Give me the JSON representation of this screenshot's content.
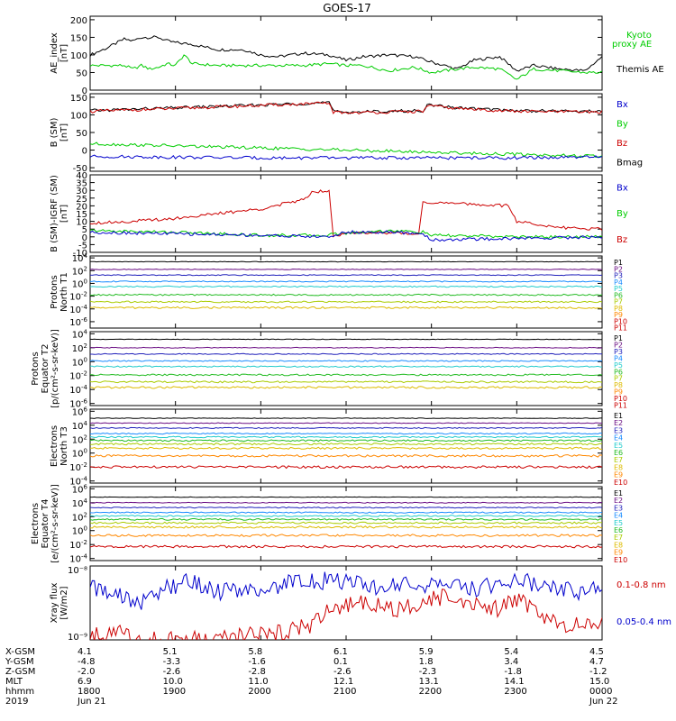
{
  "title": "GOES-17",
  "chart_data": [
    {
      "type": "line",
      "panel": "ae",
      "ylabel": [
        "AE_index",
        "[nT]"
      ],
      "yticks": [
        "200",
        "150",
        "100",
        "50",
        "0"
      ],
      "ylim": [
        0,
        210
      ],
      "legend": [
        {
          "label": "Kyoto",
          "color": "#00cc00"
        },
        {
          "label": "proxy AE",
          "color": "#00cc00"
        },
        {
          "label": "Themis AE",
          "color": "#000000"
        }
      ],
      "series": [
        {
          "name": "Themis AE",
          "color": "#000000",
          "x": [
            0,
            0.2,
            0.4,
            0.5,
            0.6,
            0.7,
            0.8,
            0.9,
            1.0,
            1.2,
            1.5,
            1.8,
            2.0,
            2.2,
            2.5,
            2.8,
            3.0,
            3.2,
            3.5,
            3.8,
            4.0,
            4.3,
            4.5,
            4.8,
            5.0,
            5.2,
            5.5,
            5.8,
            6.0
          ],
          "values": [
            100,
            120,
            145,
            140,
            150,
            150,
            150,
            140,
            135,
            130,
            115,
            115,
            100,
            95,
            105,
            100,
            85,
            95,
            100,
            95,
            80,
            60,
            85,
            95,
            55,
            70,
            60,
            55,
            95
          ]
        },
        {
          "name": "Kyoto proxy AE",
          "color": "#00cc00",
          "x": [
            0,
            0.4,
            0.5,
            0.6,
            0.7,
            0.8,
            0.9,
            1.0,
            1.1,
            1.2,
            1.5,
            1.8,
            2.0,
            2.5,
            2.8,
            3.0,
            3.2,
            3.5,
            3.8,
            4.0,
            4.3,
            4.5,
            4.8,
            5.0,
            5.2,
            5.5,
            5.8,
            6.0
          ],
          "values": [
            70,
            70,
            60,
            70,
            60,
            65,
            75,
            70,
            100,
            75,
            70,
            70,
            70,
            70,
            75,
            70,
            70,
            55,
            65,
            50,
            60,
            65,
            60,
            30,
            60,
            55,
            50,
            50
          ]
        }
      ]
    },
    {
      "type": "line",
      "panel": "bsm",
      "ylabel": [
        "B (SM)",
        "[nT]"
      ],
      "yticks": [
        "150",
        "100",
        "50",
        "0",
        "-50"
      ],
      "ylim": [
        -60,
        160
      ],
      "legend": [
        {
          "label": "Bx",
          "color": "#0000cc"
        },
        {
          "label": "By",
          "color": "#00cc00"
        },
        {
          "label": "Bz",
          "color": "#cc0000"
        },
        {
          "label": "Bmag",
          "color": "#000000"
        }
      ],
      "series": [
        {
          "name": "Bmag",
          "color": "#000000",
          "x": [
            0,
            1.0,
            2.0,
            2.8,
            2.85,
            3.0,
            3.5,
            3.9,
            3.95,
            4.3,
            5.0,
            6.0
          ],
          "values": [
            112,
            120,
            128,
            135,
            110,
            108,
            110,
            112,
            128,
            120,
            112,
            110
          ]
        },
        {
          "name": "Bz",
          "color": "#cc0000",
          "x": [
            0,
            1.0,
            2.0,
            2.8,
            2.85,
            3.0,
            3.5,
            3.9,
            3.95,
            4.3,
            5.0,
            6.0
          ],
          "values": [
            110,
            118,
            127,
            133,
            108,
            106,
            108,
            110,
            126,
            118,
            110,
            108
          ]
        },
        {
          "name": "By",
          "color": "#00cc00",
          "x": [
            0,
            1.0,
            2.0,
            3.0,
            4.0,
            5.0,
            6.0
          ],
          "values": [
            18,
            12,
            6,
            0,
            -6,
            -12,
            -18
          ]
        },
        {
          "name": "Bx",
          "color": "#0000cc",
          "x": [
            0,
            1.0,
            2.0,
            3.0,
            4.0,
            5.0,
            6.0
          ],
          "values": [
            -18,
            -20,
            -22,
            -22,
            -22,
            -22,
            -20
          ]
        }
      ]
    },
    {
      "type": "line",
      "panel": "bdiff",
      "ylabel": [
        "B (SM)-IGRF (SM)",
        "[nT]"
      ],
      "yticks": [
        "40",
        "35",
        "30",
        "25",
        "20",
        "15",
        "10",
        "5",
        "0",
        "-5",
        "-10"
      ],
      "ylim": [
        -10,
        40
      ],
      "legend": [
        {
          "label": "Bx",
          "color": "#0000cc"
        },
        {
          "label": "By",
          "color": "#00cc00"
        },
        {
          "label": "Bz",
          "color": "#cc0000"
        }
      ],
      "series": [
        {
          "name": "Bz",
          "color": "#cc0000",
          "x": [
            0,
            0.5,
            1.0,
            1.5,
            2.0,
            2.5,
            2.6,
            2.8,
            2.85,
            3.0,
            3.4,
            3.7,
            3.85,
            3.9,
            4.0,
            4.5,
            4.9,
            5.0,
            5.5,
            6.0
          ],
          "values": [
            9,
            10,
            12,
            15,
            18,
            24,
            29,
            30,
            1,
            2,
            3,
            2,
            2,
            23,
            22,
            21,
            20,
            10,
            6,
            5
          ]
        },
        {
          "name": "By",
          "color": "#00cc00",
          "x": [
            0,
            1.0,
            2.0,
            2.8,
            2.85,
            3.5,
            3.9,
            4.0,
            5.0,
            6.0
          ],
          "values": [
            4,
            3,
            1,
            1,
            2,
            4,
            3,
            1,
            0,
            0
          ]
        },
        {
          "name": "Bx",
          "color": "#0000cc",
          "x": [
            0,
            1.0,
            2.0,
            2.8,
            3.0,
            3.5,
            3.9,
            4.0,
            5.0,
            6.0
          ],
          "values": [
            3,
            2,
            1,
            0,
            3,
            3,
            2,
            -2,
            -1,
            0
          ]
        }
      ]
    },
    {
      "type": "line",
      "panel": "protons-north",
      "ylabel": [
        "Protons",
        "North T1"
      ],
      "ylog": true,
      "yticks": [
        4,
        2,
        0,
        -2,
        -4,
        -6
      ],
      "ylim_exp": [
        -7,
        4.3
      ],
      "legend": [
        "P1",
        "P2",
        "P3",
        "P4",
        "P5",
        "P6",
        "P7",
        "P8",
        "P9",
        "P10",
        "P11"
      ],
      "series": [
        {
          "name": "P1",
          "color": "#000000",
          "log_value": 3.4
        },
        {
          "name": "P2",
          "color": "#6a0d83",
          "log_value": 2.2
        },
        {
          "name": "P3",
          "color": "#2222bb",
          "log_value": 1.3
        },
        {
          "name": "P4",
          "color": "#1a8cff",
          "log_value": 0.3
        },
        {
          "name": "P5",
          "color": "#22cccc",
          "log_value": -0.5
        },
        {
          "name": "P6",
          "color": "#22bb22",
          "log_value": -1.8
        },
        {
          "name": "P7",
          "color": "#aacc00",
          "log_value": -2.9
        },
        {
          "name": "P8",
          "color": "#ddbb00",
          "log_value": -3.8
        }
      ]
    },
    {
      "type": "line",
      "panel": "protons-equator",
      "ylabel": [
        "Protons",
        "Equator T2",
        "[p/(cm²-s-sr-keV)]"
      ],
      "ylog": true,
      "yticks": [
        4,
        2,
        0,
        -2,
        -4,
        -6
      ],
      "ylim_exp": [
        -6.3,
        4.3
      ],
      "legend": [
        "P1",
        "P2",
        "P3",
        "P4",
        "P5",
        "P6",
        "P7",
        "P8",
        "P9",
        "P10",
        "P11"
      ],
      "series": [
        {
          "name": "P1",
          "color": "#000000",
          "log_value": 3.2
        },
        {
          "name": "P2",
          "color": "#6a0d83",
          "log_value": 2.0
        },
        {
          "name": "P3",
          "color": "#2222bb",
          "log_value": 1.1
        },
        {
          "name": "P4",
          "color": "#1a8cff",
          "log_value": 0.1
        },
        {
          "name": "P5",
          "color": "#22cccc",
          "log_value": -0.7
        },
        {
          "name": "P6",
          "color": "#22bb22",
          "log_value": -1.9
        },
        {
          "name": "P7",
          "color": "#aacc00",
          "log_value": -2.9
        },
        {
          "name": "P8",
          "color": "#ddbb00",
          "log_value": -3.7
        }
      ]
    },
    {
      "type": "line",
      "panel": "electrons-north",
      "ylabel": [
        "Electrons",
        "North T3"
      ],
      "ylog": true,
      "yticks": [
        6,
        4,
        2,
        0,
        -2,
        -4
      ],
      "ylim_exp": [
        -4.3,
        6.3
      ],
      "legend": [
        "E1",
        "E2",
        "E3",
        "E4",
        "E5",
        "E6",
        "E7",
        "E8",
        "E9",
        "E10"
      ],
      "series": [
        {
          "name": "E1",
          "color": "#000000",
          "log_value": 5.0
        },
        {
          "name": "E2",
          "color": "#6a0d83",
          "log_value": 4.3
        },
        {
          "name": "E3",
          "color": "#2222bb",
          "log_value": 3.6
        },
        {
          "name": "E4",
          "color": "#1a8cff",
          "log_value": 2.8
        },
        {
          "name": "E5",
          "color": "#22cccc",
          "log_value": 2.3
        },
        {
          "name": "E6",
          "color": "#22bb22",
          "log_value": 1.8
        },
        {
          "name": "E7",
          "color": "#aacc00",
          "log_value": 1.3
        },
        {
          "name": "E8",
          "color": "#ddbb00",
          "log_value": 0.7
        },
        {
          "name": "E9",
          "color": "#ff8800",
          "log_value": -0.4
        },
        {
          "name": "E10",
          "color": "#cc0000",
          "log_value": -2.0
        }
      ]
    },
    {
      "type": "line",
      "panel": "electrons-equator",
      "ylabel": [
        "Electrons",
        "Equator T4",
        "[e/(cm²-s-sr-keV)]"
      ],
      "ylog": true,
      "yticks": [
        6,
        4,
        2,
        0,
        -2,
        -4
      ],
      "ylim_exp": [
        -4.3,
        6.3
      ],
      "legend": [
        "E1",
        "E2",
        "E3",
        "E4",
        "E5",
        "E6",
        "E7",
        "E8",
        "E9",
        "E10"
      ],
      "series": [
        {
          "name": "E1",
          "color": "#000000",
          "log_value": 4.8
        },
        {
          "name": "E2",
          "color": "#6a0d83",
          "log_value": 4.0
        },
        {
          "name": "E3",
          "color": "#2222bb",
          "log_value": 3.3
        },
        {
          "name": "E4",
          "color": "#1a8cff",
          "log_value": 2.6
        },
        {
          "name": "E5",
          "color": "#22cccc",
          "log_value": 2.1
        },
        {
          "name": "E6",
          "color": "#22bb22",
          "log_value": 1.6
        },
        {
          "name": "E7",
          "color": "#aacc00",
          "log_value": 1.1
        },
        {
          "name": "E8",
          "color": "#ddbb00",
          "log_value": 0.5
        },
        {
          "name": "E9",
          "color": "#ff8800",
          "log_value": -0.7
        },
        {
          "name": "E10",
          "color": "#cc0000",
          "log_value": -2.3
        }
      ]
    },
    {
      "type": "line",
      "panel": "xray",
      "ylabel": [
        "Xray flux",
        "[W/m2]"
      ],
      "ylog": true,
      "yticks_labels": [
        "10⁻⁸",
        "10⁻⁹"
      ],
      "ylim_exp": [
        -9,
        -8
      ],
      "legend": [
        {
          "label": "0.1-0.8 nm",
          "color": "#cc0000"
        },
        {
          "label": "0.05-0.4 nm",
          "color": "#0000cc"
        }
      ],
      "series": [
        {
          "name": "0.1-0.8 nm",
          "color": "#cc0000",
          "x": [
            0,
            0.3,
            0.6,
            1.0,
            1.4,
            1.8,
            2.2,
            2.6,
            2.8,
            3.2,
            3.6,
            3.9,
            4.2,
            4.5,
            4.8,
            5.0,
            5.3,
            5.6,
            6.0
          ],
          "values": [
            -8.95,
            -8.9,
            -9.0,
            -9.0,
            -9.0,
            -8.95,
            -8.9,
            -8.8,
            -8.6,
            -8.5,
            -8.6,
            -8.5,
            -8.4,
            -8.5,
            -8.6,
            -8.45,
            -8.7,
            -8.8,
            -8.75
          ]
        },
        {
          "name": "0.05-0.4 nm",
          "color": "#0000cc",
          "x": [
            0,
            0.3,
            0.6,
            0.9,
            1.2,
            1.5,
            1.8,
            2.1,
            2.4,
            2.7,
            3.0,
            3.3,
            3.6,
            3.9,
            4.2,
            4.5,
            4.8,
            5.1,
            5.4,
            5.7,
            6.0
          ],
          "values": [
            -8.3,
            -8.4,
            -8.5,
            -8.3,
            -8.2,
            -8.35,
            -8.3,
            -8.35,
            -8.2,
            -8.2,
            -8.2,
            -8.3,
            -8.25,
            -8.3,
            -8.2,
            -8.3,
            -8.25,
            -8.2,
            -8.3,
            -8.35,
            -8.3
          ]
        }
      ]
    }
  ],
  "footer": {
    "row_labels": [
      "X-GSM",
      "Y-GSM",
      "Z-GSM",
      "MLT",
      "hhmm",
      "2019"
    ],
    "columns": [
      {
        "values": [
          "4.1",
          "-4.8",
          "-2.0",
          "6.9",
          "1800",
          "Jun 21"
        ]
      },
      {
        "values": [
          "5.1",
          "-3.3",
          "-2.6",
          "10.0",
          "1900",
          ""
        ]
      },
      {
        "values": [
          "5.8",
          "-1.6",
          "-2.8",
          "11.0",
          "2000",
          ""
        ]
      },
      {
        "values": [
          "6.1",
          "0.1",
          "-2.6",
          "12.1",
          "2100",
          ""
        ]
      },
      {
        "values": [
          "5.9",
          "1.8",
          "-2.3",
          "13.1",
          "2200",
          ""
        ]
      },
      {
        "values": [
          "5.4",
          "3.4",
          "-1.8",
          "14.1",
          "2300",
          ""
        ]
      },
      {
        "values": [
          "4.5",
          "4.7",
          "-1.2",
          "15.0",
          "0000",
          "Jun 22"
        ]
      }
    ]
  }
}
